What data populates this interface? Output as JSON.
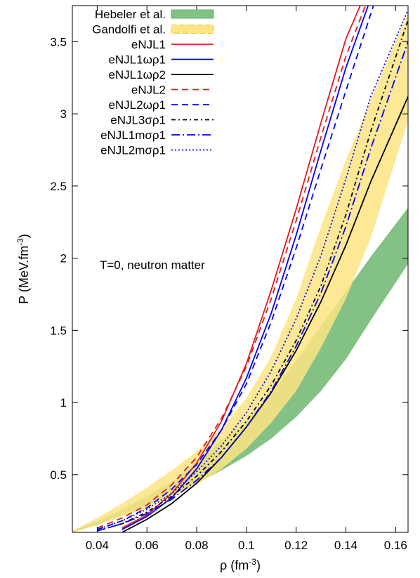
{
  "chart_data": {
    "type": "line",
    "xlabel": "ρ (fm",
    "xlabel_sup": "-3",
    "xlabel_end": ")",
    "ylabel": "P (MeV.fm",
    "ylabel_sup": "-3",
    "ylabel_end": ")",
    "xlim": [
      0.03,
      0.165
    ],
    "ylim": [
      0.1,
      3.75
    ],
    "xticks": [
      0.04,
      0.06,
      0.08,
      0.1,
      0.12,
      0.14,
      0.16
    ],
    "xtick_labels": [
      "0.04",
      "0.06",
      "0.08",
      "0.1",
      "0.12",
      "0.14",
      "0.16"
    ],
    "yticks": [
      0.5,
      1,
      1.5,
      2,
      2.5,
      3,
      3.5
    ],
    "ytick_labels": [
      "0.5",
      "1",
      "1.5",
      "2",
      "2.5",
      "3",
      "3.5"
    ],
    "grid": false,
    "legend_position": "top-left",
    "annotation": "T=0, neutron matter",
    "bands": [
      {
        "name": "Hebeler et al.",
        "color": "#6db36d",
        "fill": "#84c184",
        "x": [
          0.03,
          0.04,
          0.05,
          0.06,
          0.07,
          0.08,
          0.09,
          0.1,
          0.11,
          0.12,
          0.13,
          0.14,
          0.15,
          0.165
        ],
        "lower": [
          0.1,
          0.15,
          0.22,
          0.29,
          0.36,
          0.44,
          0.53,
          0.63,
          0.75,
          0.9,
          1.08,
          1.3,
          1.57,
          1.96
        ],
        "upper": [
          0.11,
          0.18,
          0.26,
          0.35,
          0.45,
          0.58,
          0.74,
          0.87,
          1.06,
          1.29,
          1.53,
          1.77,
          2.01,
          2.35
        ]
      },
      {
        "name": "Gandolfi et al.",
        "color": "#e8c840",
        "fill": "#fde484",
        "x": [
          0.03,
          0.04,
          0.05,
          0.06,
          0.07,
          0.08,
          0.09,
          0.1,
          0.11,
          0.12,
          0.13,
          0.14,
          0.15,
          0.165
        ],
        "lower": [
          0.1,
          0.15,
          0.21,
          0.27,
          0.34,
          0.43,
          0.54,
          0.68,
          0.86,
          1.08,
          1.38,
          1.72,
          2.14,
          2.95
        ],
        "upper": [
          0.11,
          0.2,
          0.3,
          0.41,
          0.53,
          0.66,
          0.82,
          1.03,
          1.32,
          1.72,
          2.22,
          2.68,
          3.1,
          3.7
        ]
      }
    ],
    "series": [
      {
        "name": "eNJL1",
        "color": "#e41a1c",
        "dash": "",
        "x": [
          0.05,
          0.06,
          0.07,
          0.08,
          0.09,
          0.1,
          0.11,
          0.12,
          0.13,
          0.14,
          0.147
        ],
        "y": [
          0.13,
          0.22,
          0.37,
          0.58,
          0.87,
          1.27,
          1.78,
          2.34,
          2.94,
          3.52,
          3.8
        ]
      },
      {
        "name": "eNJL1ωρ1",
        "color": "#0000ff",
        "dash": "",
        "x": [
          0.05,
          0.06,
          0.07,
          0.08,
          0.09,
          0.1,
          0.11,
          0.12,
          0.13,
          0.14,
          0.15
        ],
        "y": [
          0.12,
          0.21,
          0.34,
          0.54,
          0.81,
          1.17,
          1.62,
          2.16,
          2.75,
          3.32,
          3.8
        ]
      },
      {
        "name": "eNJL1ωρ2",
        "color": "#000000",
        "dash": "",
        "x": [
          0.05,
          0.06,
          0.07,
          0.08,
          0.09,
          0.1,
          0.11,
          0.12,
          0.13,
          0.14,
          0.15,
          0.165
        ],
        "y": [
          0.1,
          0.19,
          0.3,
          0.44,
          0.62,
          0.83,
          1.07,
          1.36,
          1.7,
          2.09,
          2.53,
          3.12
        ]
      },
      {
        "name": "eNJL2",
        "color": "#e41a1c",
        "dash": "9,6",
        "x": [
          0.04,
          0.05,
          0.06,
          0.07,
          0.08,
          0.09,
          0.1,
          0.11,
          0.12,
          0.13,
          0.14,
          0.149
        ],
        "y": [
          0.13,
          0.2,
          0.29,
          0.43,
          0.62,
          0.89,
          1.25,
          1.72,
          2.26,
          2.84,
          3.4,
          3.8
        ]
      },
      {
        "name": "eNJL2ωρ1",
        "color": "#0000ff",
        "dash": "9,6",
        "x": [
          0.04,
          0.05,
          0.06,
          0.07,
          0.08,
          0.09,
          0.1,
          0.11,
          0.12,
          0.13,
          0.14,
          0.152
        ],
        "y": [
          0.12,
          0.18,
          0.27,
          0.4,
          0.57,
          0.81,
          1.13,
          1.56,
          2.07,
          2.62,
          3.16,
          3.8
        ]
      },
      {
        "name": "eNJL3σρ1",
        "color": "#000000",
        "dash": "6,4,2,4",
        "x": [
          0.04,
          0.05,
          0.06,
          0.07,
          0.08,
          0.09,
          0.1,
          0.11,
          0.12,
          0.13,
          0.14,
          0.15,
          0.165
        ],
        "y": [
          0.11,
          0.16,
          0.24,
          0.35,
          0.49,
          0.66,
          0.87,
          1.12,
          1.43,
          1.81,
          2.3,
          2.88,
          3.65
        ]
      },
      {
        "name": "eNJL1mσρ1",
        "color": "#0000ff",
        "dash": "12,4,2,4",
        "x": [
          0.04,
          0.05,
          0.06,
          0.07,
          0.08,
          0.09,
          0.1,
          0.11,
          0.12,
          0.13,
          0.14,
          0.15,
          0.165
        ],
        "y": [
          0.11,
          0.16,
          0.23,
          0.33,
          0.46,
          0.62,
          0.83,
          1.08,
          1.39,
          1.76,
          2.22,
          2.76,
          3.5
        ]
      },
      {
        "name": "eNJL2mσρ1",
        "color": "#0000ff",
        "dash": "2,3",
        "x": [
          0.04,
          0.05,
          0.06,
          0.07,
          0.08,
          0.09,
          0.1,
          0.11,
          0.12,
          0.13,
          0.14,
          0.15,
          0.165
        ],
        "y": [
          0.12,
          0.18,
          0.26,
          0.37,
          0.52,
          0.7,
          0.93,
          1.22,
          1.58,
          2.02,
          2.55,
          3.12,
          3.72
        ]
      }
    ]
  }
}
